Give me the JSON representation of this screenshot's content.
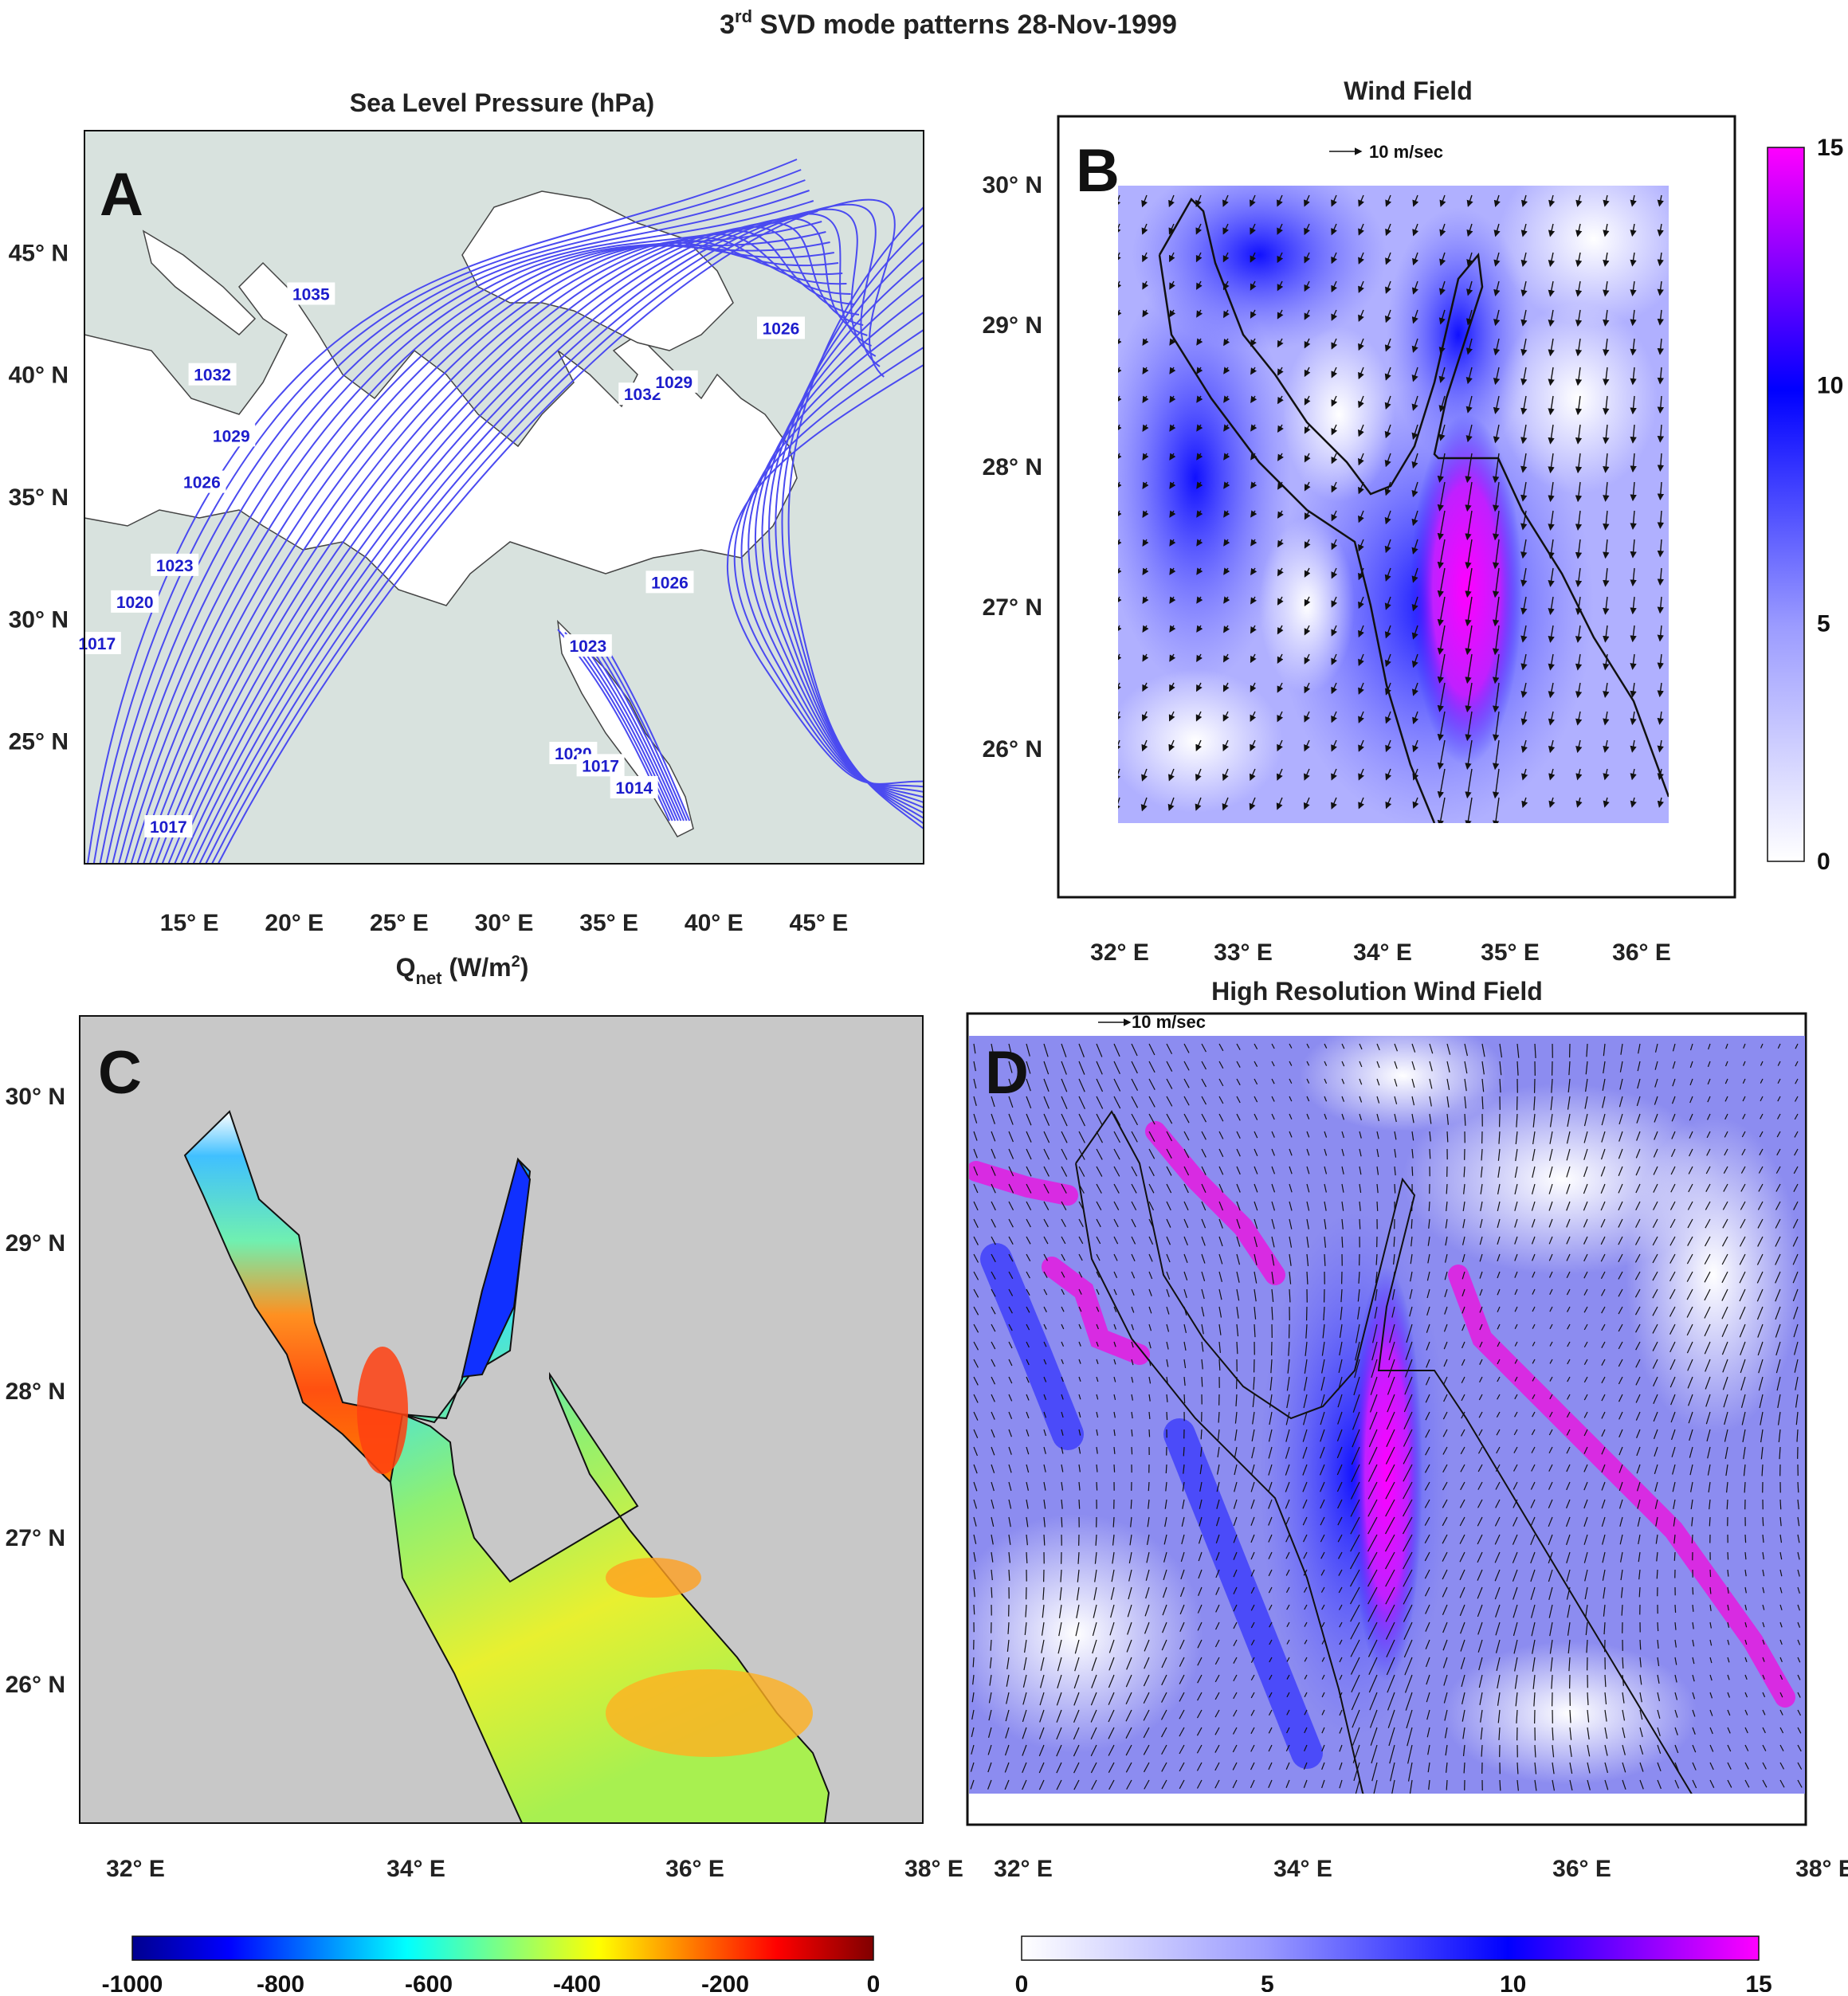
{
  "figure": {
    "title": "SVD mode patterns 28-Nov-1999",
    "title_prefix": "3",
    "title_sup": "rd"
  },
  "colors": {
    "sea_fill": "#ffffff",
    "land_fill": "#d8e2de",
    "contour": "#4a4af0",
    "wind_low": "#ffffff",
    "wind_mid": "#0000ff",
    "wind_high": "#ff00ff",
    "qnet_land": "#c8c8c8"
  },
  "chart_data": [
    {
      "panel": "A",
      "type": "contour",
      "title": "Sea Level Pressure (hPa)",
      "xticks": [
        "15° E",
        "20° E",
        "25° E",
        "30° E",
        "35° E",
        "40° E",
        "45° E"
      ],
      "yticks": [
        "45° N",
        "40° N",
        "35° N",
        "30° N",
        "25° N"
      ],
      "xlim": [
        10,
        50
      ],
      "ylim": [
        20,
        50
      ],
      "contour_labels": [
        {
          "text": "1035",
          "lon": 20.8,
          "lat": 43.3
        },
        {
          "text": "1032",
          "lon": 16.1,
          "lat": 40.0
        },
        {
          "text": "1029",
          "lon": 17.0,
          "lat": 37.5
        },
        {
          "text": "1026",
          "lon": 15.6,
          "lat": 35.6
        },
        {
          "text": "1023",
          "lon": 14.3,
          "lat": 32.2
        },
        {
          "text": "1020",
          "lon": 12.4,
          "lat": 30.7
        },
        {
          "text": "1017",
          "lon": 10.6,
          "lat": 29.0
        },
        {
          "text": "1017",
          "lon": 14.0,
          "lat": 21.5
        },
        {
          "text": "1032",
          "lon": 36.6,
          "lat": 39.2
        },
        {
          "text": "1029",
          "lon": 38.1,
          "lat": 39.7
        },
        {
          "text": "1026",
          "lon": 43.2,
          "lat": 41.9
        },
        {
          "text": "1026",
          "lon": 37.9,
          "lat": 31.5
        },
        {
          "text": "1023",
          "lon": 34.0,
          "lat": 28.9
        },
        {
          "text": "1020",
          "lon": 33.3,
          "lat": 24.5
        },
        {
          "text": "1017",
          "lon": 34.6,
          "lat": 24.0
        },
        {
          "text": "1014",
          "lon": 36.2,
          "lat": 23.1
        }
      ]
    },
    {
      "panel": "B",
      "type": "heatmap",
      "title": "Wind Field",
      "reference_vector": "10 m/sec",
      "xticks": [
        "32° E",
        "33° E",
        "34° E",
        "35° E",
        "36° E"
      ],
      "yticks": [
        "30° N",
        "29° N",
        "28° N",
        "27° N",
        "26° N"
      ],
      "colorbar": {
        "min": 0,
        "max": 15,
        "ticks": [
          "0",
          "5",
          "10",
          "15"
        ]
      },
      "ylim": [
        25.0,
        30.5
      ]
    },
    {
      "panel": "C",
      "type": "heatmap",
      "title": "Q",
      "title_sub": "net",
      "title_units": "(W/m",
      "title_sup": "2",
      "title_close": ")",
      "xticks": [
        "32° E",
        "34° E",
        "36° E",
        "38° E"
      ],
      "yticks": [
        "30° N",
        "29° N",
        "28° N",
        "27° N",
        "26° N"
      ],
      "colorbar": {
        "min": -1000,
        "max": 0,
        "ticks": [
          "-1000",
          "-800",
          "-600",
          "-400",
          "-200",
          "0"
        ]
      }
    },
    {
      "panel": "D",
      "type": "heatmap",
      "title": "High Resolution Wind Field",
      "reference_vector": "10 m/sec",
      "xticks": [
        "32° E",
        "34° E",
        "36° E",
        "38° E"
      ],
      "colorbar": {
        "min": 0,
        "max": 15,
        "ticks": [
          "0",
          "5",
          "10",
          "15"
        ]
      }
    }
  ]
}
